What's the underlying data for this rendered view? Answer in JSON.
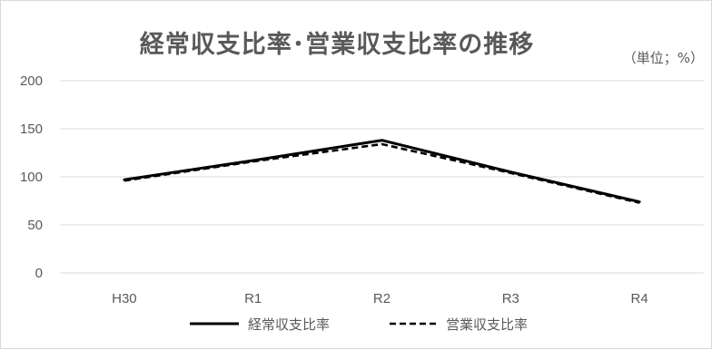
{
  "chart_data": {
    "type": "line",
    "title": "経常収支比率･営業収支比率の推移",
    "unit_label": "（単位；%）",
    "categories": [
      "H30",
      "R1",
      "R2",
      "R3",
      "R4"
    ],
    "series": [
      {
        "name": "経常収支比率",
        "values": [
          97,
          117,
          138,
          105,
          74
        ],
        "style": "solid",
        "color": "#000000"
      },
      {
        "name": "営業収支比率",
        "values": [
          96,
          116,
          134,
          104,
          73
        ],
        "style": "dashed",
        "color": "#000000"
      }
    ],
    "ylim": [
      0,
      200
    ],
    "yticks": [
      0,
      50,
      100,
      150,
      200
    ],
    "grid": true,
    "legend_position": "bottom",
    "colors": {
      "grid": "#d9d9d9",
      "text": "#595959"
    }
  }
}
